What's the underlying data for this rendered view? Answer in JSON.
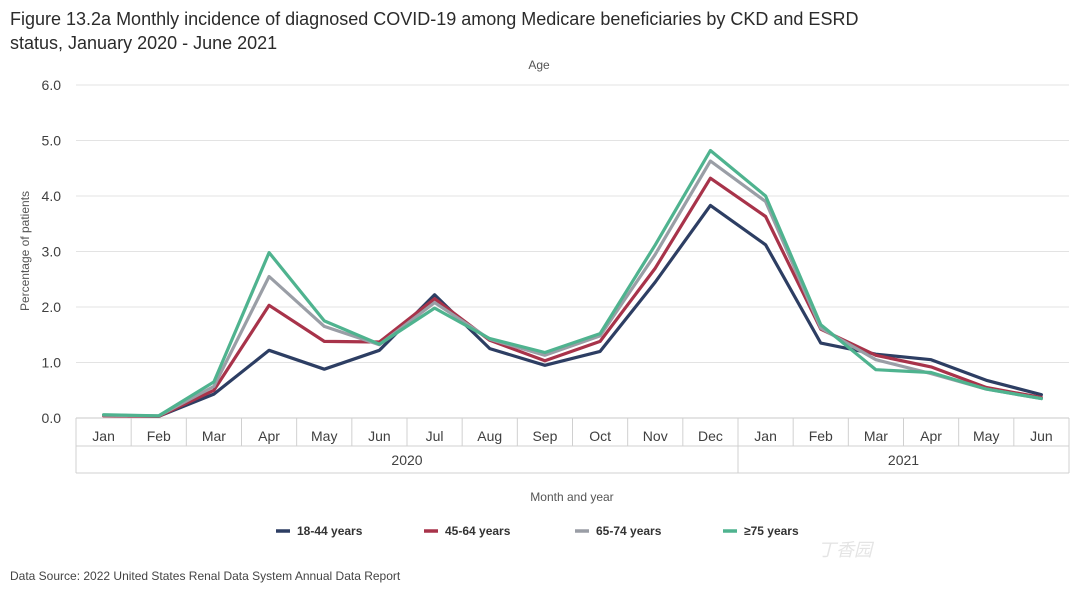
{
  "chart_data": {
    "type": "line",
    "title_line1": "Figure 13.2a Monthly incidence of diagnosed COVID-19 among Medicare beneficiaries by CKD and ESRD",
    "title_line2": "status, January 2020 - June 2021",
    "subtitle": "Age",
    "xlabel": "Month and year",
    "ylabel": "Percentage of patients",
    "ylim": [
      0,
      6
    ],
    "yticks": [
      "0.0",
      "1.0",
      "2.0",
      "3.0",
      "4.0",
      "5.0",
      "6.0"
    ],
    "categories": [
      "Jan",
      "Feb",
      "Mar",
      "Apr",
      "May",
      "Jun",
      "Jul",
      "Aug",
      "Sep",
      "Oct",
      "Nov",
      "Dec",
      "Jan",
      "Feb",
      "Mar",
      "Apr",
      "May",
      "Jun"
    ],
    "year_groups": [
      {
        "label": "2020",
        "count": 12
      },
      {
        "label": "2021",
        "count": 6
      }
    ],
    "series": [
      {
        "name": "18-44 years",
        "color": "#2d3e63",
        "values": [
          0.05,
          0.03,
          0.43,
          1.22,
          0.88,
          1.22,
          2.22,
          1.25,
          0.95,
          1.2,
          2.45,
          3.83,
          3.12,
          1.35,
          1.15,
          1.05,
          0.68,
          0.42
        ]
      },
      {
        "name": "45-64 years",
        "color": "#a8334a",
        "values": [
          0.04,
          0.03,
          0.5,
          2.03,
          1.38,
          1.37,
          2.15,
          1.4,
          1.03,
          1.38,
          2.7,
          4.32,
          3.63,
          1.6,
          1.13,
          0.92,
          0.55,
          0.37
        ]
      },
      {
        "name": "65-74 years",
        "color": "#9a9ea6",
        "values": [
          0.05,
          0.04,
          0.57,
          2.55,
          1.65,
          1.32,
          2.08,
          1.42,
          1.13,
          1.48,
          2.95,
          4.63,
          3.9,
          1.62,
          1.05,
          0.8,
          0.52,
          0.35
        ]
      },
      {
        "name": "≥75 years",
        "color": "#4fb38f",
        "values": [
          0.06,
          0.04,
          0.65,
          2.98,
          1.75,
          1.33,
          1.98,
          1.43,
          1.18,
          1.52,
          3.12,
          4.82,
          4.0,
          1.68,
          0.87,
          0.82,
          0.52,
          0.35
        ]
      }
    ]
  },
  "source_text": "Data Source: 2022 United States Renal Data System Annual Data Report",
  "watermark_text": "丁香园"
}
